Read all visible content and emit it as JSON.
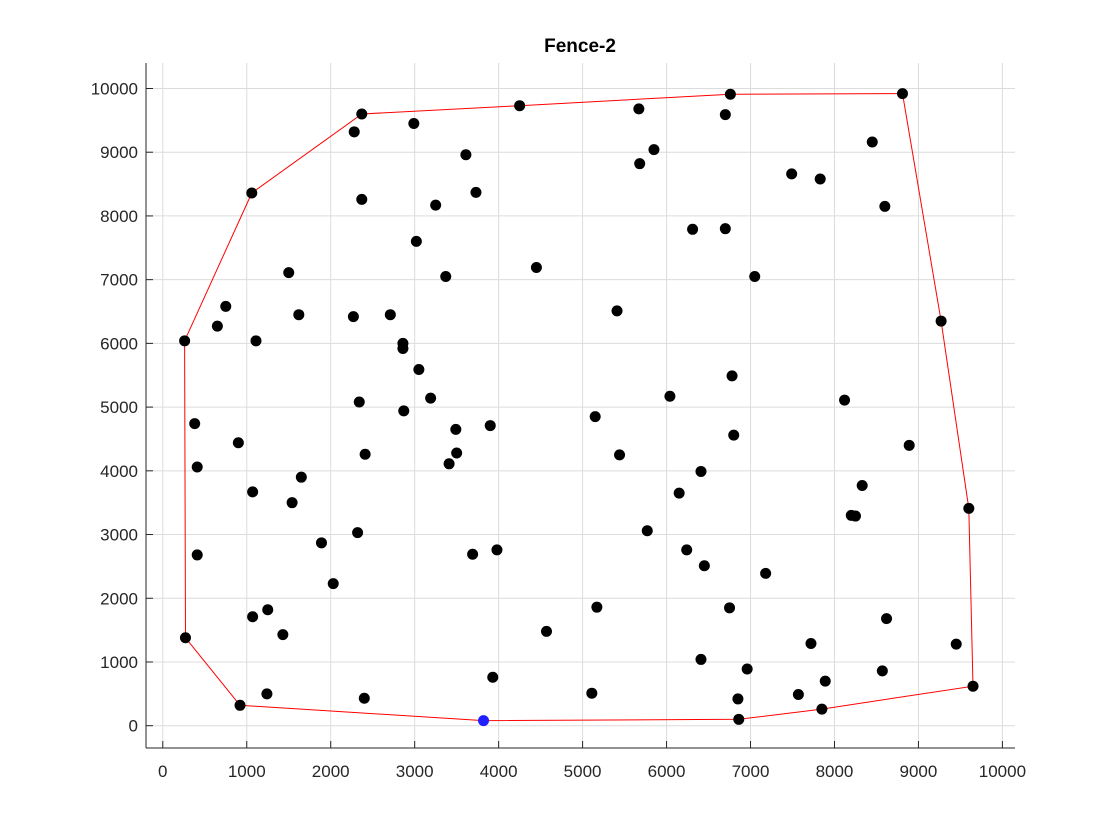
{
  "chart_data": {
    "type": "scatter",
    "title": "Fence-2",
    "xlabel": "",
    "ylabel": "",
    "xlim": [
      -200,
      10150
    ],
    "ylim": [
      -350,
      10400
    ],
    "xticks": [
      0,
      1000,
      2000,
      3000,
      4000,
      5000,
      6000,
      7000,
      8000,
      9000,
      10000
    ],
    "yticks": [
      0,
      1000,
      2000,
      3000,
      4000,
      5000,
      6000,
      7000,
      8000,
      9000,
      10000
    ],
    "grid": true,
    "points": [
      [
        1060,
        8360
      ],
      [
        2370,
        9600
      ],
      [
        4250,
        9730
      ],
      [
        6760,
        9910
      ],
      [
        8810,
        9920
      ],
      [
        2280,
        9320
      ],
      [
        2990,
        9450
      ],
      [
        5670,
        9680
      ],
      [
        6700,
        9590
      ],
      [
        8450,
        9160
      ],
      [
        3610,
        8960
      ],
      [
        5680,
        8820
      ],
      [
        5850,
        9040
      ],
      [
        7490,
        8660
      ],
      [
        7830,
        8580
      ],
      [
        2370,
        8260
      ],
      [
        3730,
        8370
      ],
      [
        3250,
        8170
      ],
      [
        8600,
        8150
      ],
      [
        6310,
        7790
      ],
      [
        6700,
        7800
      ],
      [
        3020,
        7600
      ],
      [
        1500,
        7110
      ],
      [
        4450,
        7190
      ],
      [
        3370,
        7050
      ],
      [
        7050,
        7050
      ],
      [
        750,
        6580
      ],
      [
        650,
        6270
      ],
      [
        1620,
        6450
      ],
      [
        2270,
        6420
      ],
      [
        2710,
        6450
      ],
      [
        5410,
        6510
      ],
      [
        9270,
        6350
      ],
      [
        260,
        6040
      ],
      [
        1110,
        6040
      ],
      [
        2860,
        6000
      ],
      [
        2860,
        5920
      ],
      [
        3050,
        5590
      ],
      [
        6780,
        5490
      ],
      [
        2340,
        5080
      ],
      [
        3190,
        5140
      ],
      [
        6040,
        5170
      ],
      [
        8120,
        5110
      ],
      [
        2870,
        4940
      ],
      [
        5150,
        4850
      ],
      [
        380,
        4740
      ],
      [
        3490,
        4650
      ],
      [
        3900,
        4710
      ],
      [
        6800,
        4560
      ],
      [
        900,
        4440
      ],
      [
        8890,
        4400
      ],
      [
        2410,
        4260
      ],
      [
        3500,
        4280
      ],
      [
        5440,
        4250
      ],
      [
        410,
        4060
      ],
      [
        3410,
        4110
      ],
      [
        1650,
        3900
      ],
      [
        6410,
        3990
      ],
      [
        8330,
        3770
      ],
      [
        1070,
        3670
      ],
      [
        6150,
        3650
      ],
      [
        1540,
        3500
      ],
      [
        9600,
        3410
      ],
      [
        8200,
        3300
      ],
      [
        8250,
        3290
      ],
      [
        2320,
        3030
      ],
      [
        5770,
        3060
      ],
      [
        1890,
        2870
      ],
      [
        3690,
        2690
      ],
      [
        3980,
        2760
      ],
      [
        6240,
        2760
      ],
      [
        410,
        2680
      ],
      [
        6450,
        2510
      ],
      [
        7180,
        2390
      ],
      [
        2030,
        2230
      ],
      [
        1250,
        1820
      ],
      [
        5170,
        1860
      ],
      [
        6750,
        1850
      ],
      [
        1070,
        1710
      ],
      [
        4570,
        1480
      ],
      [
        8620,
        1680
      ],
      [
        270,
        1380
      ],
      [
        1430,
        1430
      ],
      [
        7720,
        1290
      ],
      [
        9450,
        1280
      ],
      [
        6410,
        1040
      ],
      [
        6960,
        890
      ],
      [
        8570,
        860
      ],
      [
        3930,
        760
      ],
      [
        7890,
        700
      ],
      [
        9650,
        620
      ],
      [
        1240,
        500
      ],
      [
        2400,
        430
      ],
      [
        5110,
        510
      ],
      [
        6850,
        420
      ],
      [
        7570,
        490
      ],
      [
        920,
        320
      ],
      [
        6860,
        100
      ],
      [
        7850,
        260
      ]
    ],
    "highlight": [
      3820,
      80
    ],
    "hull": [
      [
        920,
        320
      ],
      [
        270,
        1380
      ],
      [
        260,
        6040
      ],
      [
        1060,
        8360
      ],
      [
        2370,
        9600
      ],
      [
        4250,
        9730
      ],
      [
        6760,
        9910
      ],
      [
        8810,
        9920
      ],
      [
        9270,
        6350
      ],
      [
        9600,
        3410
      ],
      [
        9650,
        620
      ],
      [
        7850,
        260
      ],
      [
        6860,
        100
      ],
      [
        3820,
        80
      ],
      [
        920,
        320
      ]
    ],
    "colors": {
      "points": "#000000",
      "highlight": "#1f1fff",
      "hull": "#ff0000",
      "grid": "#dcdcdc",
      "axis": "#262626"
    }
  }
}
